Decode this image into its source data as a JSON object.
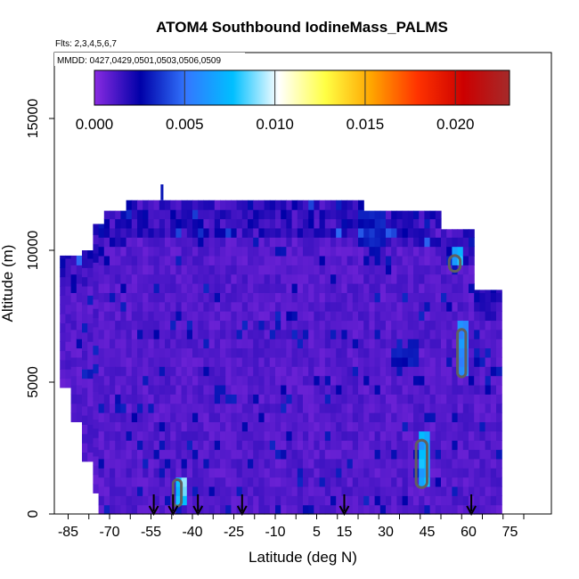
{
  "chart_data": {
    "type": "heatmap",
    "title": "ATOM4 Southbound IodineMass_PALMS",
    "subtitle_flights": "Flts: 2,3,4,5,6,7",
    "subtitle_dates": "MMDD: 0427,0429,0501,0503,0506,0509",
    "xlabel": "Latitude (deg N)",
    "ylabel": "Altitude (m)",
    "xlim": [
      -90,
      90
    ],
    "ylim": [
      0,
      17500
    ],
    "x_tick_labels": [
      "-85",
      "-70",
      "-55",
      "-40",
      "-25",
      "-10",
      "5",
      "15",
      "30",
      "45",
      "60",
      "75"
    ],
    "x_tick_values": [
      -85,
      -70,
      -55,
      -40,
      -25,
      -10,
      5,
      15,
      30,
      45,
      60,
      75
    ],
    "y_tick_labels": [
      "0",
      "5000",
      "10000",
      "15000"
    ],
    "y_tick_values": [
      0,
      5000,
      10000,
      15000
    ],
    "colorbar": {
      "min": 0.0,
      "max": 0.023,
      "tick_labels": [
        "0.000",
        "0.005",
        "0.010",
        "0.015",
        "0.020"
      ],
      "tick_values": [
        0.0,
        0.005,
        0.01,
        0.015,
        0.02
      ],
      "colors": [
        "#8a2be2",
        "#0000a8",
        "#3377ff",
        "#00bfff",
        "#ffffff",
        "#ffff44",
        "#ffa500",
        "#ff3300",
        "#cc0000",
        "#a52a2a"
      ]
    },
    "profile_arrow_latitudes": [
      -54,
      -47,
      -38,
      -22,
      15,
      61
    ],
    "data_extent_lat": [
      -88,
      72
    ],
    "typical_value": 0.001,
    "features": [
      {
        "lat": [
          -47,
          -44
        ],
        "alt": [
          300,
          1300
        ],
        "value": 0.008
      },
      {
        "lat": [
          41,
          45
        ],
        "alt": [
          1000,
          2800
        ],
        "value": 0.007
      },
      {
        "lat": [
          56,
          59
        ],
        "alt": [
          5200,
          7000
        ],
        "value": 0.006
      },
      {
        "lat": [
          53,
          57
        ],
        "alt": [
          9200,
          9800
        ],
        "value": 0.007
      },
      {
        "lat": [
          31,
          41
        ],
        "alt": [
          5500,
          6100
        ],
        "value": 0.003
      },
      {
        "lat": [
          20,
          29
        ],
        "alt": [
          10100,
          11800
        ],
        "value": 0.003
      }
    ],
    "colors": {
      "axis": "#000000",
      "contour": "#606060",
      "background": "#ffffff"
    }
  }
}
